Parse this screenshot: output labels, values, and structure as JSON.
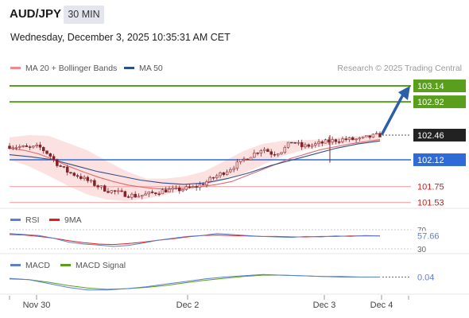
{
  "header": {
    "symbol": "AUD/JPY",
    "timeframe": "30 MIN",
    "datetime": "Wednesday, December 3, 2025 10:35:31 AM CET"
  },
  "credit": "Research © 2025 Trading Central",
  "colors": {
    "up_candle": "#f6c3c6",
    "down_candle": "#8b1d25",
    "ma20": "#e26a6f",
    "bollinger_fill": "#fbdada",
    "ma50": "#2e4f8c",
    "resistance": "#5a9e1e",
    "pivot": "#2f6bd6",
    "support": "#f3a6a9",
    "arrow": "#2d5ea8",
    "rsi": "#5b7fd1",
    "rsi_ma": "#e02020",
    "macd": "#5b7fd1",
    "macd_signal": "#5a9e1e"
  },
  "chart_data": [
    {
      "type": "candlestick",
      "title": "",
      "legend": [
        {
          "name": "MA 20 + Bollinger Bands",
          "color": "#f08a8c"
        },
        {
          "name": "MA 50",
          "color": "#2e4f8c"
        }
      ],
      "x_ticks": [
        "Nov 30",
        "Dec 2",
        "Dec 3",
        "Dec 4"
      ],
      "ylim": [
        101.45,
        103.25
      ],
      "last_price": 102.46,
      "levels": [
        {
          "label": "103.14",
          "value": 103.14,
          "kind": "resistance"
        },
        {
          "label": "102.92",
          "value": 102.92,
          "kind": "resistance"
        },
        {
          "label": "102.12",
          "value": 102.12,
          "kind": "pivot"
        },
        {
          "label": "101.75",
          "value": 101.75,
          "kind": "support"
        },
        {
          "label": "101.53",
          "value": 101.53,
          "kind": "support"
        }
      ],
      "close_path": [
        102.31,
        102.3,
        102.28,
        102.3,
        102.2,
        102.05,
        101.95,
        101.9,
        101.83,
        101.76,
        101.7,
        101.67,
        101.64,
        101.62,
        101.64,
        101.67,
        101.7,
        101.7,
        101.72,
        101.74,
        101.8,
        101.88,
        101.95,
        102.03,
        102.12,
        102.2,
        102.28,
        102.2,
        102.25,
        102.38,
        102.3,
        102.32,
        102.35,
        102.38,
        102.4,
        102.4,
        102.4,
        102.44,
        102.46
      ],
      "ma20": [
        102.28,
        102.25,
        102.2,
        102.12,
        102.03,
        101.95,
        101.88,
        101.82,
        101.77,
        101.74,
        101.72,
        101.72,
        101.73,
        101.75,
        101.78,
        101.82,
        101.9,
        101.98,
        102.06,
        102.14,
        102.2,
        102.26,
        102.3,
        102.34,
        102.37,
        102.4
      ],
      "bb_upper": [
        102.43,
        102.46,
        102.45,
        102.35,
        102.25,
        102.1,
        101.96,
        101.86,
        101.86,
        101.89,
        101.96,
        102.1,
        102.24,
        102.34,
        102.38,
        102.39,
        102.4,
        102.43,
        102.45,
        102.49
      ],
      "bb_lower": [
        102.12,
        102.03,
        101.9,
        101.76,
        101.64,
        101.57,
        101.55,
        101.58,
        101.64,
        101.7,
        101.76,
        101.84,
        101.93,
        102.05,
        102.17,
        102.25,
        102.3,
        102.34,
        102.36,
        102.38
      ],
      "ma50": [
        102.19,
        102.16,
        102.12,
        102.04,
        101.96,
        101.9,
        101.84,
        101.8,
        101.78,
        101.8,
        101.86,
        101.94,
        102.04,
        102.12,
        102.2,
        102.28,
        102.34,
        102.38
      ]
    },
    {
      "type": "line",
      "title": "",
      "legend": [
        {
          "name": "RSI",
          "color": "#5b7fd1"
        },
        {
          "name": "9MA",
          "color": "#e02020"
        }
      ],
      "y_ticks": [
        70,
        30
      ],
      "current": 57.66,
      "current_label": "57.66",
      "series": [
        {
          "name": "RSI",
          "values": [
            62,
            60,
            58,
            52,
            44,
            40,
            38,
            35,
            37,
            42,
            48,
            52,
            56,
            58,
            62,
            60,
            58,
            56,
            55,
            54,
            56,
            55,
            57,
            56,
            58,
            57
          ]
        },
        {
          "name": "9MA",
          "values": [
            60,
            59,
            56,
            52,
            47,
            43,
            40,
            39,
            41,
            44,
            48,
            51,
            55,
            58,
            59,
            58,
            57,
            56,
            56,
            55,
            55,
            56,
            56,
            57,
            57,
            57
          ]
        }
      ]
    },
    {
      "type": "line",
      "title": "",
      "legend": [
        {
          "name": "MACD",
          "color": "#5b7fd1"
        },
        {
          "name": "MACD Signal",
          "color": "#5a9e1e"
        }
      ],
      "ylim": [
        -0.2,
        0.12
      ],
      "current": 0.04,
      "current_label": "0.04",
      "series": [
        {
          "name": "MACD",
          "values": [
            0.02,
            0.0,
            -0.06,
            -0.12,
            -0.16,
            -0.16,
            -0.14,
            -0.11,
            -0.07,
            -0.03,
            0.01,
            0.04,
            0.06,
            0.08,
            0.07,
            0.06,
            0.05,
            0.04,
            0.04,
            0.04
          ]
        },
        {
          "name": "MACD Signal",
          "values": [
            0.01,
            0.0,
            -0.04,
            -0.09,
            -0.13,
            -0.15,
            -0.14,
            -0.12,
            -0.09,
            -0.05,
            -0.01,
            0.02,
            0.05,
            0.07,
            0.07,
            0.06,
            0.05,
            0.05,
            0.04,
            0.04
          ]
        }
      ]
    }
  ]
}
